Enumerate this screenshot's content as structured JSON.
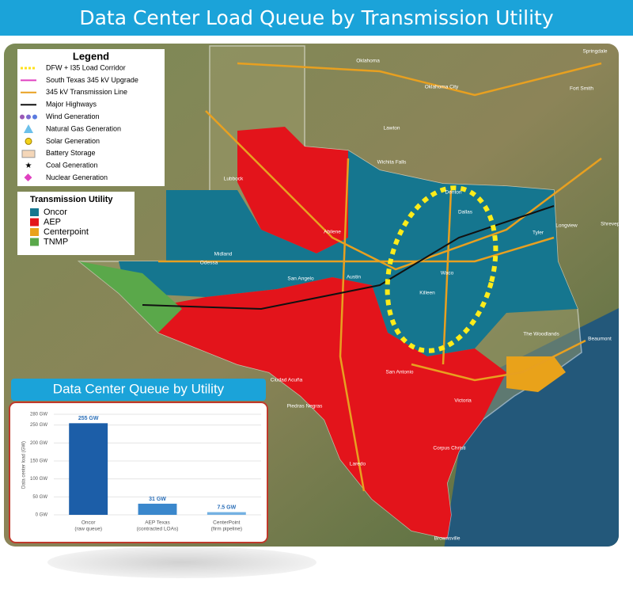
{
  "header": {
    "title": "Data Center Load Queue by Transmission Utility"
  },
  "legend": {
    "title": "Legend",
    "items": [
      "DFW + I35 Load Corridor",
      "South Texas 345 kV Upgrade",
      "345 kV Transmission Line",
      "Major Highways",
      "Wind Generation",
      "Natural Gas Generation",
      "Solar Generation",
      "Battery Storage",
      "Coal Generation",
      "Nuclear Generation"
    ]
  },
  "utility_legend": {
    "title": "Transmission Utility",
    "items": [
      {
        "name": "Oncor",
        "color": "#15768f"
      },
      {
        "name": "AEP",
        "color": "#e3141b"
      },
      {
        "name": "Centerpoint",
        "color": "#e9a21a"
      },
      {
        "name": "TNMP",
        "color": "#5aa84a"
      }
    ]
  },
  "map_labels": [
    "Oklahoma",
    "Oklahoma City",
    "Lawton",
    "Wichita Falls",
    "Denton",
    "Dallas",
    "Tyler",
    "Longview",
    "Lubbock",
    "Abilene",
    "Midland",
    "Odessa",
    "San Angelo",
    "Waco",
    "Killeen",
    "Austin",
    "San Antonio",
    "Ciudad Acuña",
    "Piedras Negras",
    "Laredo",
    "Victoria",
    "Corpus Christi",
    "Brownsville",
    "The Woodlands",
    "Beaumont",
    "Fort Smith",
    "Springdale",
    "Shreveport"
  ],
  "chart_data": {
    "type": "bar",
    "title": "Data Center Queue by Utility",
    "ylabel": "Data center load (GW)",
    "categories": [
      "Oncor",
      "AEP Texas",
      "CenterPoint"
    ],
    "category_notes": [
      "(raw queue)",
      "(contracted LOAs)",
      "(firm pipeline)"
    ],
    "values": [
      255,
      31,
      7.5
    ],
    "value_labels": [
      "255 GW",
      "31 GW",
      "7.5 GW"
    ],
    "colors": [
      "#1c5ea8",
      "#3a87cc",
      "#74b1e2"
    ],
    "ylim": [
      0,
      280
    ],
    "yticks": [
      {
        "value": 0,
        "label": "0 GW"
      },
      {
        "value": 50,
        "label": "50 GW"
      },
      {
        "value": 100,
        "label": "100 GW"
      },
      {
        "value": 150,
        "label": "150 GW"
      },
      {
        "value": 200,
        "label": "200 GW"
      },
      {
        "value": 250,
        "label": "250 GW"
      },
      {
        "value": 280,
        "label": "280 GW"
      }
    ],
    "grid": true
  }
}
